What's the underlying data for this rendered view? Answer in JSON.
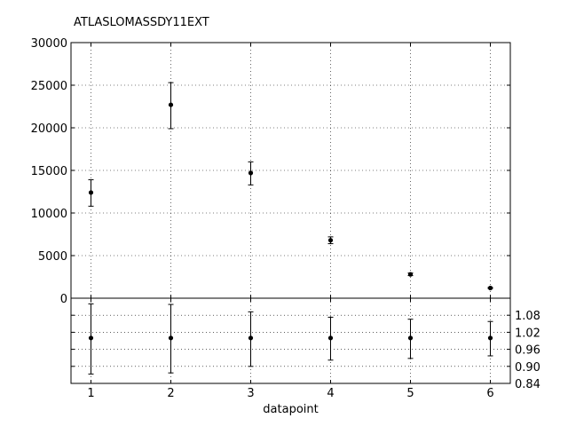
{
  "chart_data": [
    {
      "panel": "main",
      "type": "scatter",
      "title": "ATLASLOMASSDY11EXT",
      "xlabel": "",
      "ylabel": "",
      "xlim": [
        0.75,
        6.25
      ],
      "ylim": [
        0,
        30000
      ],
      "x_ticks": [
        1,
        2,
        3,
        4,
        5,
        6
      ],
      "y_ticks": [
        0,
        5000,
        10000,
        15000,
        20000,
        25000,
        30000
      ],
      "grid": true,
      "points": [
        {
          "x": 1,
          "y": 12400,
          "err_low": 10800,
          "err_high": 13900
        },
        {
          "x": 2,
          "y": 22700,
          "err_low": 19900,
          "err_high": 25300
        },
        {
          "x": 3,
          "y": 14700,
          "err_low": 13300,
          "err_high": 16000
        },
        {
          "x": 4,
          "y": 6800,
          "err_low": 6400,
          "err_high": 7200
        },
        {
          "x": 5,
          "y": 2800,
          "err_low": 2650,
          "err_high": 2950
        },
        {
          "x": 6,
          "y": 1200,
          "err_low": 1140,
          "err_high": 1260
        }
      ]
    },
    {
      "panel": "ratio",
      "type": "scatter",
      "title": "",
      "xlabel": "datapoint",
      "ylabel": "",
      "xlim": [
        0.75,
        6.25
      ],
      "ylim": [
        0.84,
        1.14
      ],
      "x_ticks": [
        1,
        2,
        3,
        4,
        5,
        6
      ],
      "y_ticks": [
        0.84,
        0.9,
        0.96,
        1.02,
        1.08
      ],
      "y_tick_labels": [
        "0.84",
        "0.90",
        "0.96",
        "1.02",
        "1.08"
      ],
      "y_axis_side": "right",
      "grid": true,
      "points": [
        {
          "x": 1,
          "y": 1.0,
          "err_low": 0.873,
          "err_high": 1.12
        },
        {
          "x": 2,
          "y": 1.0,
          "err_low": 0.877,
          "err_high": 1.118
        },
        {
          "x": 3,
          "y": 1.0,
          "err_low": 0.9,
          "err_high": 1.092
        },
        {
          "x": 4,
          "y": 1.0,
          "err_low": 0.922,
          "err_high": 1.073
        },
        {
          "x": 5,
          "y": 1.0,
          "err_low": 0.928,
          "err_high": 1.066
        },
        {
          "x": 6,
          "y": 1.0,
          "err_low": 0.937,
          "err_high": 1.058
        }
      ]
    }
  ]
}
